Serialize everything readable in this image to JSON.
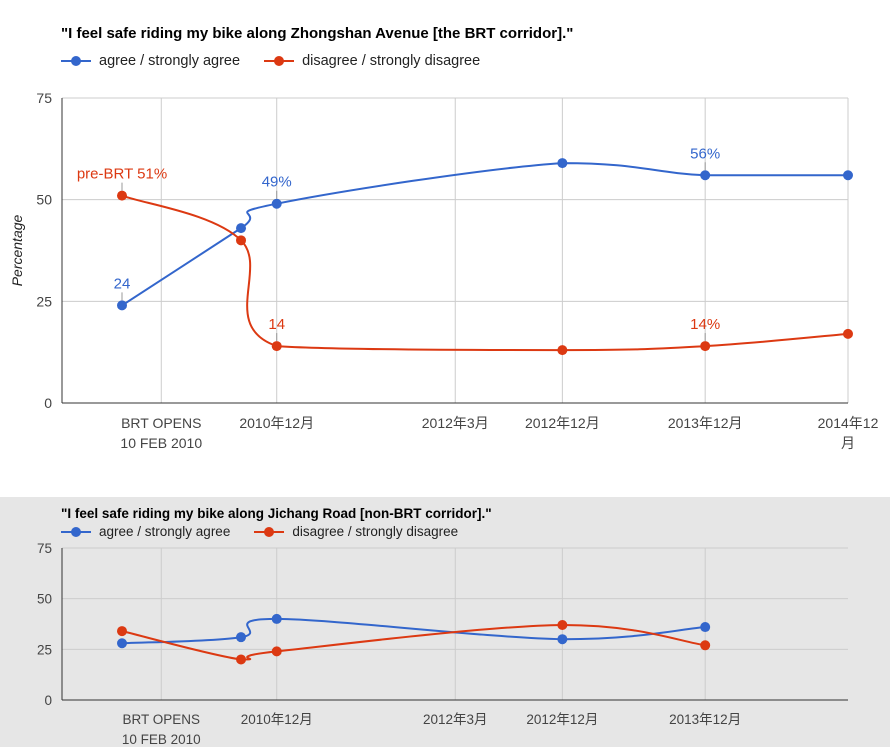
{
  "colors": {
    "agree": "#3366cc",
    "disagree": "#dc3912",
    "grid": "#cccccc",
    "axis": "#333333"
  },
  "chart_data": [
    {
      "type": "line",
      "title": "\"I feel safe riding my bike along Zhongshan Avenue [the BRT corridor].\"",
      "ylabel": "Percentage",
      "ylim": [
        0,
        75
      ],
      "yticks": [
        "0",
        "25",
        "50",
        "75"
      ],
      "x_ticks": [
        {
          "date": "2010-02-10",
          "label": [
            "BRT OPENS",
            "10 FEB 2010"
          ]
        },
        {
          "date": "2010-12",
          "label": [
            "2010年12月"
          ]
        },
        {
          "date": "2012-03",
          "label": [
            "2012年3月"
          ]
        },
        {
          "date": "2012-12",
          "label": [
            "2012年12月"
          ]
        },
        {
          "date": "2013-12",
          "label": [
            "2013年12月"
          ]
        },
        {
          "date": "2014-12",
          "label": [
            "2014年12",
            "月"
          ]
        }
      ],
      "grid": true,
      "legend_position": "top-left",
      "series": [
        {
          "name": "agree / strongly agree",
          "color_key": "agree",
          "points": [
            {
              "x": "2009-11",
              "y": 24,
              "label": "24"
            },
            {
              "x": "2010-09",
              "y": 43
            },
            {
              "x": "2010-12",
              "y": 49,
              "label": "49%"
            },
            {
              "x": "2012-12",
              "y": 59
            },
            {
              "x": "2013-12",
              "y": 56,
              "label": "56%"
            },
            {
              "x": "2014-12",
              "y": 56
            }
          ]
        },
        {
          "name": "disagree / strongly disagree",
          "color_key": "disagree",
          "points": [
            {
              "x": "2009-11",
              "y": 51,
              "label": "pre-BRT 51%"
            },
            {
              "x": "2010-09",
              "y": 40
            },
            {
              "x": "2010-12",
              "y": 14,
              "label": "14"
            },
            {
              "x": "2012-12",
              "y": 13
            },
            {
              "x": "2013-12",
              "y": 14,
              "label": "14%"
            },
            {
              "x": "2014-12",
              "y": 17
            }
          ]
        }
      ]
    },
    {
      "type": "line",
      "title": "\"I feel safe riding my bike along Jichang Road [non-BRT corridor].\"",
      "ylabel": "",
      "ylim": [
        0,
        75
      ],
      "yticks": [
        "0",
        "25",
        "50",
        "75"
      ],
      "x_ticks": [
        {
          "date": "2010-02-10",
          "label": [
            "BRT OPENS",
            "10 FEB 2010"
          ]
        },
        {
          "date": "2010-12",
          "label": [
            "2010年12月"
          ]
        },
        {
          "date": "2012-03",
          "label": [
            "2012年3月"
          ]
        },
        {
          "date": "2012-12",
          "label": [
            "2012年12月"
          ]
        },
        {
          "date": "2013-12",
          "label": [
            "2013年12月"
          ]
        }
      ],
      "grid": true,
      "legend_position": "top-left",
      "series": [
        {
          "name": "agree / strongly agree",
          "color_key": "agree",
          "points": [
            {
              "x": "2009-11",
              "y": 28
            },
            {
              "x": "2010-09",
              "y": 31
            },
            {
              "x": "2010-12",
              "y": 40
            },
            {
              "x": "2012-12",
              "y": 30
            },
            {
              "x": "2013-12",
              "y": 36
            }
          ]
        },
        {
          "name": "disagree / strongly disagree",
          "color_key": "disagree",
          "points": [
            {
              "x": "2009-11",
              "y": 34
            },
            {
              "x": "2010-09",
              "y": 20
            },
            {
              "x": "2010-12",
              "y": 24
            },
            {
              "x": "2012-12",
              "y": 37
            },
            {
              "x": "2013-12",
              "y": 27
            }
          ]
        }
      ]
    }
  ]
}
